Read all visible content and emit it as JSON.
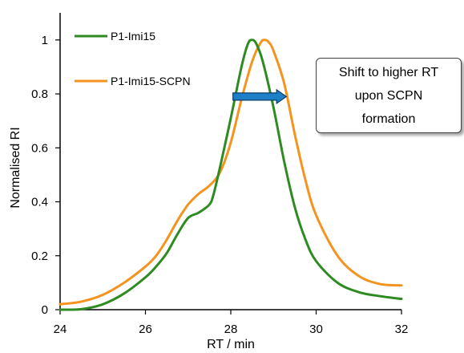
{
  "chart_data": {
    "type": "line",
    "xlabel": "RT / min",
    "ylabel": "Normalised RI",
    "xlim": [
      24,
      32
    ],
    "ylim": [
      0,
      1.05
    ],
    "xticks": [
      24,
      26,
      28,
      30,
      32
    ],
    "yticks": [
      0,
      0.2,
      0.4,
      0.6,
      0.8,
      1
    ],
    "xtick_labels": [
      "24",
      "26",
      "28",
      "30",
      "32"
    ],
    "ytick_labels": [
      "0",
      "0.2",
      "0.4",
      "0.6",
      "0.8",
      "1"
    ],
    "grid": false,
    "legend_position": "top-left",
    "series": [
      {
        "name": "P1-Imi15",
        "color": "#2e8b22",
        "points": [
          [
            24.0,
            0.0
          ],
          [
            24.5,
            0.002
          ],
          [
            25.0,
            0.02
          ],
          [
            25.5,
            0.06
          ],
          [
            26.0,
            0.12
          ],
          [
            26.25,
            0.16
          ],
          [
            26.5,
            0.21
          ],
          [
            26.75,
            0.28
          ],
          [
            27.0,
            0.34
          ],
          [
            27.25,
            0.36
          ],
          [
            27.5,
            0.39
          ],
          [
            27.6,
            0.43
          ],
          [
            27.75,
            0.53
          ],
          [
            28.0,
            0.71
          ],
          [
            28.25,
            0.9
          ],
          [
            28.4,
            0.985
          ],
          [
            28.5,
            1.0
          ],
          [
            28.6,
            0.985
          ],
          [
            28.75,
            0.92
          ],
          [
            29.0,
            0.75
          ],
          [
            29.25,
            0.55
          ],
          [
            29.5,
            0.38
          ],
          [
            29.75,
            0.26
          ],
          [
            30.0,
            0.18
          ],
          [
            30.5,
            0.1
          ],
          [
            31.0,
            0.065
          ],
          [
            31.5,
            0.05
          ],
          [
            32.0,
            0.04
          ]
        ]
      },
      {
        "name": "P1-Imi15-SCPN",
        "color": "#f5931f",
        "points": [
          [
            24.0,
            0.02
          ],
          [
            24.5,
            0.03
          ],
          [
            25.0,
            0.055
          ],
          [
            25.5,
            0.1
          ],
          [
            26.0,
            0.16
          ],
          [
            26.25,
            0.2
          ],
          [
            26.5,
            0.26
          ],
          [
            26.75,
            0.33
          ],
          [
            27.0,
            0.39
          ],
          [
            27.25,
            0.43
          ],
          [
            27.5,
            0.46
          ],
          [
            27.75,
            0.51
          ],
          [
            28.0,
            0.62
          ],
          [
            28.25,
            0.78
          ],
          [
            28.5,
            0.92
          ],
          [
            28.7,
            0.99
          ],
          [
            28.8,
            1.0
          ],
          [
            28.9,
            0.99
          ],
          [
            29.0,
            0.96
          ],
          [
            29.25,
            0.84
          ],
          [
            29.5,
            0.65
          ],
          [
            29.75,
            0.48
          ],
          [
            30.0,
            0.35
          ],
          [
            30.5,
            0.2
          ],
          [
            31.0,
            0.125
          ],
          [
            31.5,
            0.095
          ],
          [
            32.0,
            0.09
          ]
        ]
      }
    ],
    "annotations": [
      {
        "text": "Shift to higher RT upon SCPN formation",
        "type": "callout-box"
      },
      {
        "type": "arrow",
        "from": [
          28.05,
          0.79
        ],
        "to": [
          29.3,
          0.79
        ],
        "color": "#1c7fc8"
      }
    ]
  }
}
